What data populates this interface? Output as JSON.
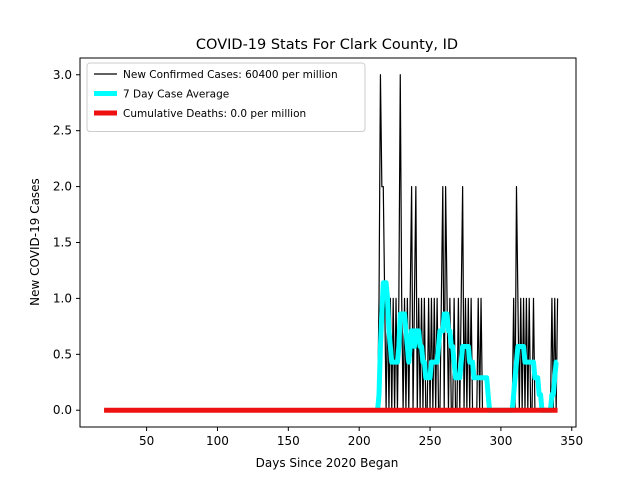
{
  "chart_data": {
    "type": "line",
    "title": "COVID-19 Stats For Clark County, ID",
    "xlabel": "Days Since 2020 Began",
    "ylabel": "New COVID-19 Cases",
    "xlim": [
      3,
      353
    ],
    "ylim": [
      -0.15,
      3.15
    ],
    "xticks": [
      50,
      100,
      150,
      200,
      250,
      300,
      350
    ],
    "yticks": [
      0.0,
      0.5,
      1.0,
      1.5,
      2.0,
      2.5,
      3.0
    ],
    "xtick_labels": [
      "50",
      "100",
      "150",
      "200",
      "250",
      "300",
      "350"
    ],
    "ytick_labels": [
      "0.0",
      "0.5",
      "1.0",
      "1.5",
      "2.0",
      "2.5",
      "3.0"
    ],
    "grid": false,
    "legend_position": "top-left",
    "series": [
      {
        "name": "New Confirmed Cases: 60400 per million",
        "color": "#000000",
        "style": "thin",
        "x": [
          20,
          212,
          213,
          214,
          215,
          216,
          217,
          218,
          219,
          220,
          221,
          222,
          223,
          224,
          225,
          226,
          227,
          228,
          229,
          230,
          231,
          232,
          233,
          234,
          235,
          236,
          237,
          238,
          239,
          240,
          241,
          242,
          243,
          244,
          245,
          246,
          247,
          248,
          249,
          250,
          251,
          252,
          253,
          254,
          255,
          256,
          257,
          258,
          259,
          260,
          261,
          262,
          263,
          264,
          265,
          266,
          267,
          268,
          269,
          270,
          271,
          272,
          273,
          274,
          275,
          276,
          277,
          278,
          279,
          280,
          281,
          282,
          283,
          284,
          285,
          286,
          287,
          288,
          289,
          290,
          291,
          292,
          293,
          294,
          295,
          305,
          306,
          307,
          308,
          309,
          310,
          311,
          312,
          313,
          314,
          315,
          316,
          317,
          318,
          319,
          320,
          321,
          322,
          323,
          324,
          325,
          326,
          327,
          328,
          329,
          330,
          331,
          332,
          333,
          334,
          335,
          336,
          337,
          338,
          339,
          340
        ],
        "y": [
          0,
          0,
          0,
          1,
          3,
          2,
          2,
          1,
          0,
          1,
          0,
          1,
          0,
          1,
          0,
          1,
          0,
          1,
          3,
          1,
          0,
          1,
          0,
          1,
          0,
          1,
          2,
          0,
          1,
          2,
          0,
          1,
          0,
          1,
          0,
          1,
          0,
          0,
          1,
          0,
          1,
          0,
          1,
          0,
          1,
          0,
          0,
          1,
          2,
          0,
          2,
          1,
          0,
          1,
          0,
          0,
          1,
          0,
          0,
          1,
          0,
          1,
          2,
          0,
          1,
          0,
          1,
          0,
          1,
          0,
          0,
          0,
          0,
          1,
          0,
          1,
          0,
          0,
          0,
          0,
          0,
          0,
          0,
          0,
          0,
          0,
          0,
          0,
          0,
          1,
          0,
          2,
          1,
          0,
          1,
          0,
          1,
          0,
          1,
          0,
          1,
          0,
          0,
          1,
          0,
          0,
          0,
          0,
          0,
          0,
          0,
          0,
          0,
          0,
          0,
          0,
          1,
          0,
          1,
          0,
          1
        ]
      },
      {
        "name": "7 Day Case Average",
        "color": "#00ffff",
        "style": "thick",
        "x": [
          213,
          214,
          215,
          216,
          217,
          218,
          219,
          220,
          221,
          222,
          223,
          224,
          225,
          226,
          227,
          228,
          229,
          230,
          231,
          232,
          233,
          234,
          235,
          236,
          237,
          238,
          239,
          240,
          241,
          242,
          243,
          244,
          245,
          246,
          247,
          248,
          249,
          250,
          251,
          252,
          253,
          254,
          255,
          256,
          257,
          258,
          259,
          260,
          261,
          262,
          263,
          264,
          265,
          266,
          267,
          268,
          269,
          270,
          271,
          272,
          273,
          274,
          275,
          276,
          277,
          278,
          279,
          280,
          281,
          282,
          283,
          284,
          285,
          286,
          287,
          288,
          289,
          290,
          291,
          292,
          293,
          294,
          295,
          307,
          308,
          309,
          310,
          311,
          312,
          313,
          314,
          315,
          316,
          317,
          318,
          319,
          320,
          321,
          322,
          323,
          324,
          325,
          326,
          327,
          328,
          329,
          330,
          331,
          332,
          333,
          334,
          335,
          336,
          337,
          338,
          339,
          340
        ],
        "y": [
          0,
          0.14,
          0.57,
          0.86,
          1.14,
          1.14,
          1.14,
          1.0,
          0.71,
          0.57,
          0.43,
          0.43,
          0.43,
          0.43,
          0.43,
          0.57,
          0.86,
          0.86,
          0.86,
          0.86,
          0.71,
          0.57,
          0.43,
          0.57,
          0.71,
          0.71,
          0.57,
          0.71,
          0.71,
          0.71,
          0.57,
          0.57,
          0.43,
          0.43,
          0.29,
          0.29,
          0.29,
          0.29,
          0.43,
          0.43,
          0.43,
          0.43,
          0.43,
          0.57,
          0.71,
          0.71,
          0.71,
          0.86,
          0.86,
          0.86,
          0.71,
          0.71,
          0.57,
          0.57,
          0.43,
          0.29,
          0.29,
          0.29,
          0.29,
          0.43,
          0.57,
          0.57,
          0.57,
          0.57,
          0.57,
          0.43,
          0.43,
          0.43,
          0.29,
          0.29,
          0.29,
          0.29,
          0.29,
          0.29,
          0.29,
          0.29,
          0.29,
          0.29,
          0.14,
          0.0,
          0.0,
          0.0,
          0.0,
          0.0,
          0.0,
          0.14,
          0.29,
          0.43,
          0.57,
          0.57,
          0.57,
          0.57,
          0.57,
          0.43,
          0.43,
          0.43,
          0.43,
          0.43,
          0.43,
          0.43,
          0.29,
          0.29,
          0.29,
          0.14,
          0.14,
          0.0,
          0.0,
          0.0,
          0.0,
          0.0,
          0.0,
          0.0,
          0.14,
          0.14,
          0.29,
          0.43,
          0.43
        ]
      },
      {
        "name": "Cumulative Deaths: 0.0 per million",
        "color": "#ee1111",
        "style": "thick",
        "x": [
          20,
          340
        ],
        "y": [
          0,
          0
        ]
      }
    ]
  }
}
